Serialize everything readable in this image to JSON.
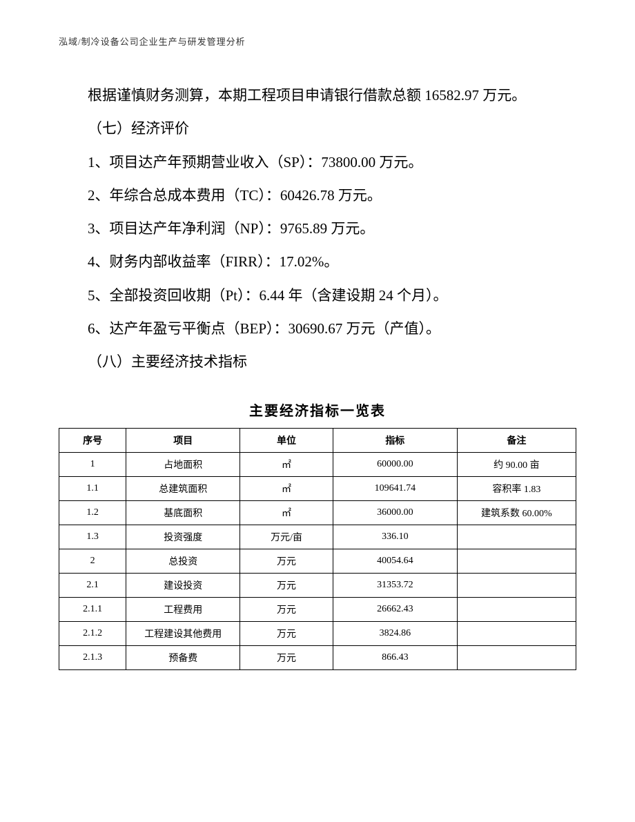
{
  "header": {
    "text": "泓域/制冷设备公司企业生产与研发管理分析"
  },
  "body": {
    "paragraph1": "根据谨慎财务测算，本期工程项目申请银行借款总额 16582.97 万元。",
    "section7_heading": "（七）经济评价",
    "items": [
      "1、项目达产年预期营业收入（SP）：73800.00 万元。",
      "2、年综合总成本费用（TC）：60426.78 万元。",
      "3、项目达产年净利润（NP）：9765.89 万元。",
      "4、财务内部收益率（FIRR）：17.02%。",
      "5、全部投资回收期（Pt）：6.44 年（含建设期 24 个月）。",
      "6、达产年盈亏平衡点（BEP）：30690.67 万元（产值）。"
    ],
    "section8_heading": "（八）主要经济技术指标"
  },
  "table": {
    "title": "主要经济指标一览表",
    "columns": [
      "序号",
      "项目",
      "单位",
      "指标",
      "备注"
    ],
    "rows": [
      [
        "1",
        "占地面积",
        "㎡",
        "60000.00",
        "约 90.00 亩"
      ],
      [
        "1.1",
        "总建筑面积",
        "㎡",
        "109641.74",
        "容积率 1.83"
      ],
      [
        "1.2",
        "基底面积",
        "㎡",
        "36000.00",
        "建筑系数 60.00%"
      ],
      [
        "1.3",
        "投资强度",
        "万元/亩",
        "336.10",
        ""
      ],
      [
        "2",
        "总投资",
        "万元",
        "40054.64",
        ""
      ],
      [
        "2.1",
        "建设投资",
        "万元",
        "31353.72",
        ""
      ],
      [
        "2.1.1",
        "工程费用",
        "万元",
        "26662.43",
        ""
      ],
      [
        "2.1.2",
        "工程建设其他费用",
        "万元",
        "3824.86",
        ""
      ],
      [
        "2.1.3",
        "预备费",
        "万元",
        "866.43",
        ""
      ]
    ]
  },
  "styles": {
    "background_color": "#ffffff",
    "text_color": "#000000",
    "header_color": "#333333",
    "border_color": "#000000",
    "body_fontsize": 21,
    "header_fontsize": 13,
    "table_title_fontsize": 20,
    "table_fontsize": 14,
    "line_height": 2.3
  }
}
